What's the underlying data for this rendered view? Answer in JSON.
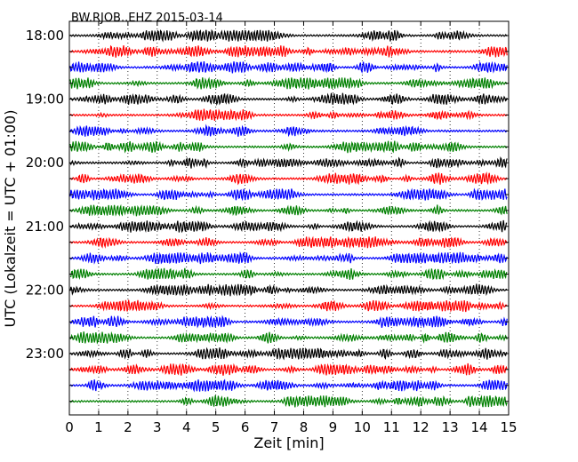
{
  "chart_data": {
    "type": "line",
    "title": "BW.RJOB..EHZ 2015-03-14",
    "xlabel": "Zeit  [min]",
    "ylabel": "UTC (Lokalzeit = UTC + 01:00)",
    "xlim": [
      0,
      15
    ],
    "x_ticks": [
      0,
      1,
      2,
      3,
      4,
      5,
      6,
      7,
      8,
      9,
      10,
      11,
      12,
      13,
      14,
      15
    ],
    "y_tick_labels": [
      "18:00",
      "19:00",
      "20:00",
      "21:00",
      "22:00",
      "23:00"
    ],
    "rows": [
      "18:00",
      "18:15",
      "18:30",
      "18:45",
      "19:00",
      "19:15",
      "19:30",
      "19:45",
      "20:00",
      "20:15",
      "20:30",
      "20:45",
      "21:00",
      "21:15",
      "21:30",
      "21:45",
      "22:00",
      "22:15",
      "22:30",
      "22:45",
      "23:00",
      "23:15",
      "23:30",
      "23:45"
    ],
    "trace_colors": [
      "#000000",
      "#ff0000",
      "#0000ff",
      "#008000"
    ],
    "grid": "vertical dotted"
  }
}
